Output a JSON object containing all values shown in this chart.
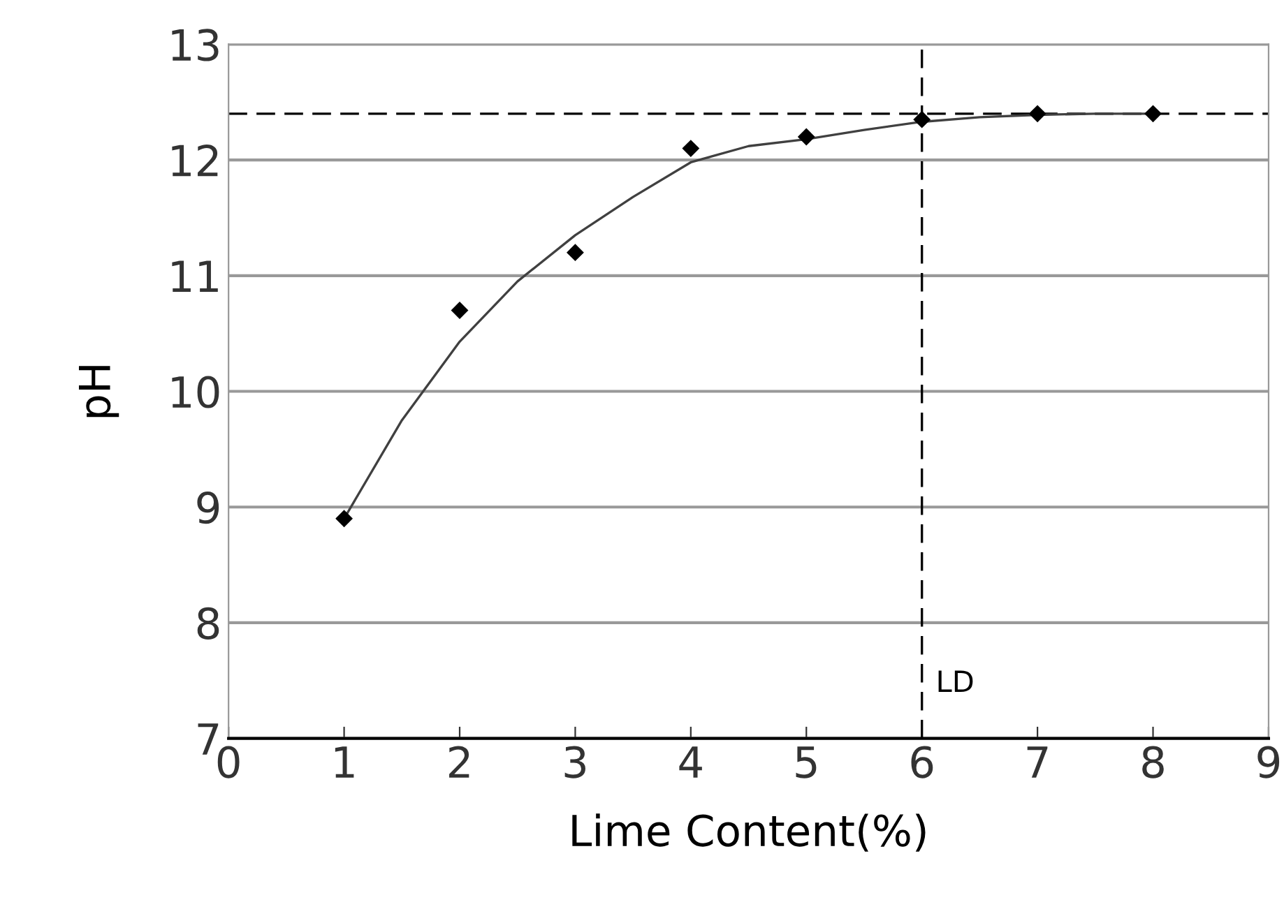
{
  "chart_data": {
    "type": "scatter",
    "xlabel": "Lime Content(%)",
    "ylabel": "pH",
    "series": [
      {
        "color": "#000000",
        "marker": "diamond",
        "x": [
          1,
          2,
          3,
          4,
          5,
          6,
          7,
          8
        ],
        "values": [
          8.9,
          10.7,
          11.2,
          12.1,
          12.2,
          12.35,
          12.4,
          12.4
        ]
      },
      {
        "type": "line",
        "color": "#404040",
        "marker": "none",
        "x": [
          1,
          1.5,
          2,
          2.5,
          3,
          3.5,
          4,
          4.5,
          5,
          5.5,
          6,
          6.5,
          7,
          7.5,
          8
        ],
        "values": [
          8.9,
          9.75,
          10.43,
          10.95,
          11.35,
          11.68,
          11.98,
          12.12,
          12.18,
          12.26,
          12.33,
          12.37,
          12.39,
          12.4,
          12.4
        ]
      }
    ],
    "xlim": [
      0,
      9
    ],
    "ylim": [
      7,
      13
    ],
    "xticks": [
      0,
      1,
      2,
      3,
      4,
      5,
      6,
      7,
      8,
      9
    ],
    "yticks": [
      7,
      8,
      9,
      10,
      11,
      12,
      13
    ],
    "grid": "y",
    "ref_lines": [
      {
        "axis": "y",
        "value": 12.4,
        "color": "#000000",
        "line_style": "dashed"
      },
      {
        "axis": "x",
        "value": 6,
        "label": "LD",
        "color": "#000000",
        "line_style": "dashed"
      }
    ]
  }
}
